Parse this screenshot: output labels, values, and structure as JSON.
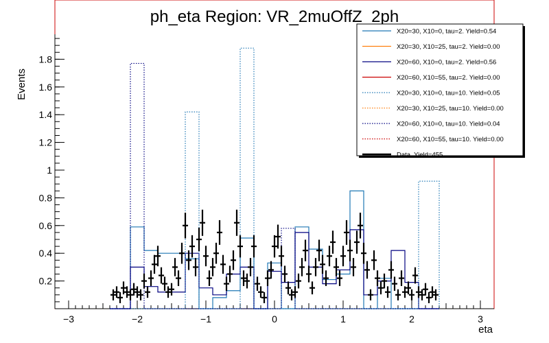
{
  "chart_data": {
    "type": "line",
    "title": "ph_eta Region: VR_2muOffZ_2ph",
    "xlabel": "eta",
    "ylabel": "Events",
    "xlim": [
      -3.2,
      3.2
    ],
    "ylim": [
      0,
      1.98
    ],
    "xticks": [
      "−3",
      "−2",
      "−1",
      "0",
      "1",
      "2",
      "3"
    ],
    "xtick_values": [
      -3,
      -2,
      -1,
      0,
      1,
      2,
      3
    ],
    "yticks": [
      "0.2",
      "0.4",
      "0.6",
      "0.8",
      "1",
      "1.2",
      "1.4",
      "1.6",
      "1.8"
    ],
    "ytick_values": [
      0.2,
      0.4,
      0.6,
      0.8,
      1.0,
      1.2,
      1.4,
      1.6,
      1.8
    ],
    "legend_position": "top-right",
    "series": [
      {
        "name": "X20=30, X10=0, tau=2. Yield=0.54",
        "color": "#1f77b4",
        "style": "solid",
        "edges": [
          -2.4,
          -2.1,
          -1.9,
          -1.7,
          -1.3,
          -1.1,
          -0.9,
          -0.7,
          -0.5,
          -0.3,
          -0.1,
          0.1,
          0.3,
          0.5,
          0.7,
          0.9,
          1.1,
          1.3,
          1.5,
          1.7,
          1.9,
          2.1,
          2.4
        ],
        "values": [
          0.0,
          0.59,
          0.42,
          0.4,
          0.36,
          0.0,
          0.08,
          0.13,
          0.51,
          0.0,
          0.33,
          0.0,
          0.59,
          0.43,
          0.21,
          0.25,
          0.85,
          0.0,
          0.22,
          0.0,
          0.0,
          0.0
        ]
      },
      {
        "name": "X20=30, X10=25, tau=2. Yield=0.00",
        "color": "#ff7f0e",
        "style": "solid",
        "values": []
      },
      {
        "name": "X20=60, X10=0, tau=2. Yield=0.56",
        "color": "#000080",
        "style": "solid",
        "edges": [
          -2.4,
          -2.1,
          -1.9,
          -1.7,
          -1.3,
          -1.1,
          -0.9,
          -0.7,
          -0.5,
          -0.3,
          -0.1,
          0.1,
          0.3,
          0.5,
          0.7,
          0.9,
          1.1,
          1.3,
          1.5,
          1.7,
          1.9,
          2.1,
          2.4
        ],
        "values": [
          0.0,
          0.3,
          0.16,
          0.12,
          0.4,
          0.15,
          0.1,
          0.25,
          0.3,
          0.0,
          0.27,
          0.19,
          0.55,
          0.3,
          0.18,
          0.28,
          0.57,
          0.1,
          0.2,
          0.42,
          0.19,
          0.0
        ]
      },
      {
        "name": "X20=60, X10=55, tau=2. Yield=0.00",
        "color": "#cc0000",
        "style": "solid",
        "values": []
      },
      {
        "name": "X20=30, X10=0, tau=10. Yield=0.05",
        "color": "#1f77b4",
        "style": "dotted",
        "edges": [
          -2.4,
          -2.1,
          -1.9,
          -1.7,
          -1.3,
          -1.1,
          -0.9,
          -0.7,
          -0.5,
          -0.3,
          -0.1,
          0.1,
          0.3,
          0.5,
          0.7,
          0.9,
          1.1,
          1.3,
          1.5,
          1.7,
          1.9,
          2.1,
          2.4
        ],
        "values": [
          0.0,
          0.0,
          0.0,
          0.0,
          1.42,
          0.0,
          0.0,
          0.0,
          1.88,
          0.0,
          0.0,
          0.0,
          0.0,
          0.0,
          0.0,
          0.0,
          0.0,
          0.0,
          0.0,
          0.0,
          0.0,
          0.92
        ]
      },
      {
        "name": "X20=30, X10=25, tau=10. Yield=0.00",
        "color": "#ff7f0e",
        "style": "dotted",
        "values": []
      },
      {
        "name": "X20=60, X10=0, tau=10. Yield=0.04",
        "color": "#000080",
        "style": "dotted",
        "edges": [
          -2.4,
          -2.1,
          -1.9,
          -1.7,
          -1.3,
          -1.1,
          -0.9,
          -0.7,
          -0.5,
          -0.3,
          -0.1,
          0.1,
          0.3,
          0.5,
          0.7,
          0.9,
          1.1,
          1.3,
          1.5,
          1.7,
          1.9,
          2.1,
          2.4
        ],
        "values": [
          0.0,
          1.77,
          0.0,
          0.0,
          0.0,
          0.0,
          0.0,
          0.0,
          0.0,
          0.0,
          0.0,
          0.58,
          0.0,
          0.0,
          0.0,
          0.0,
          0.0,
          0.0,
          0.0,
          0.0,
          0.0,
          0.0
        ]
      },
      {
        "name": "X20=60, X10=55, tau=10. Yield=0.00",
        "color": "#cc0000",
        "style": "dotted",
        "values": []
      },
      {
        "name": "Data. Yield=455",
        "color": "#000000",
        "style": "points",
        "points": [
          [
            -2.35,
            0.1
          ],
          [
            -2.3,
            0.12
          ],
          [
            -2.25,
            0.08
          ],
          [
            -2.2,
            0.15
          ],
          [
            -2.15,
            0.12
          ],
          [
            -2.1,
            0.1
          ],
          [
            -2.05,
            0.14
          ],
          [
            -2.0,
            0.12
          ],
          [
            -1.95,
            0.1
          ],
          [
            -1.9,
            0.2
          ],
          [
            -1.85,
            0.12
          ],
          [
            -1.8,
            0.22
          ],
          [
            -1.75,
            0.32
          ],
          [
            -1.7,
            0.38
          ],
          [
            -1.65,
            0.24
          ],
          [
            -1.6,
            0.18
          ],
          [
            -1.55,
            0.12
          ],
          [
            -1.5,
            0.14
          ],
          [
            -1.45,
            0.3
          ],
          [
            -1.4,
            0.22
          ],
          [
            -1.35,
            0.4
          ],
          [
            -1.3,
            0.6
          ],
          [
            -1.25,
            0.35
          ],
          [
            -1.2,
            0.45
          ],
          [
            -1.15,
            0.3
          ],
          [
            -1.1,
            0.5
          ],
          [
            -1.05,
            0.62
          ],
          [
            -1.0,
            0.38
          ],
          [
            -0.95,
            0.22
          ],
          [
            -0.9,
            0.3
          ],
          [
            -0.85,
            0.4
          ],
          [
            -0.8,
            0.55
          ],
          [
            -0.75,
            0.32
          ],
          [
            -0.7,
            0.18
          ],
          [
            -0.65,
            0.25
          ],
          [
            -0.6,
            0.35
          ],
          [
            -0.55,
            0.62
          ],
          [
            -0.5,
            0.45
          ],
          [
            -0.45,
            0.22
          ],
          [
            -0.4,
            0.2
          ],
          [
            -0.35,
            0.3
          ],
          [
            -0.3,
            0.45
          ],
          [
            -0.25,
            0.18
          ],
          [
            -0.2,
            0.12
          ],
          [
            -0.15,
            0.08
          ],
          [
            -0.1,
            0.22
          ],
          [
            -0.05,
            0.28
          ],
          [
            0.0,
            0.45
          ],
          [
            0.05,
            0.52
          ],
          [
            0.1,
            0.38
          ],
          [
            0.15,
            0.25
          ],
          [
            0.2,
            0.15
          ],
          [
            0.25,
            0.1
          ],
          [
            0.3,
            0.12
          ],
          [
            0.35,
            0.2
          ],
          [
            0.4,
            0.3
          ],
          [
            0.45,
            0.42
          ],
          [
            0.5,
            0.25
          ],
          [
            0.55,
            0.15
          ],
          [
            0.6,
            0.3
          ],
          [
            0.65,
            0.42
          ],
          [
            0.7,
            0.32
          ],
          [
            0.75,
            0.22
          ],
          [
            0.8,
            0.38
          ],
          [
            0.85,
            0.48
          ],
          [
            0.9,
            0.3
          ],
          [
            0.95,
            0.22
          ],
          [
            1.0,
            0.38
          ],
          [
            1.05,
            0.55
          ],
          [
            1.1,
            0.42
          ],
          [
            1.15,
            0.3
          ],
          [
            1.2,
            0.48
          ],
          [
            1.25,
            0.6
          ],
          [
            1.3,
            0.4
          ],
          [
            1.35,
            0.28
          ],
          [
            1.4,
            0.1
          ],
          [
            1.45,
            0.35
          ],
          [
            1.5,
            0.22
          ],
          [
            1.55,
            0.15
          ],
          [
            1.6,
            0.2
          ],
          [
            1.65,
            0.12
          ],
          [
            1.7,
            0.28
          ],
          [
            1.75,
            0.18
          ],
          [
            1.8,
            0.1
          ],
          [
            1.85,
            0.22
          ],
          [
            1.9,
            0.12
          ],
          [
            1.95,
            0.15
          ],
          [
            2.0,
            0.1
          ],
          [
            2.05,
            0.24
          ],
          [
            2.1,
            0.12
          ],
          [
            2.15,
            0.1
          ],
          [
            2.2,
            0.14
          ],
          [
            2.25,
            0.08
          ],
          [
            2.3,
            0.12
          ],
          [
            2.35,
            0.1
          ]
        ]
      }
    ]
  }
}
